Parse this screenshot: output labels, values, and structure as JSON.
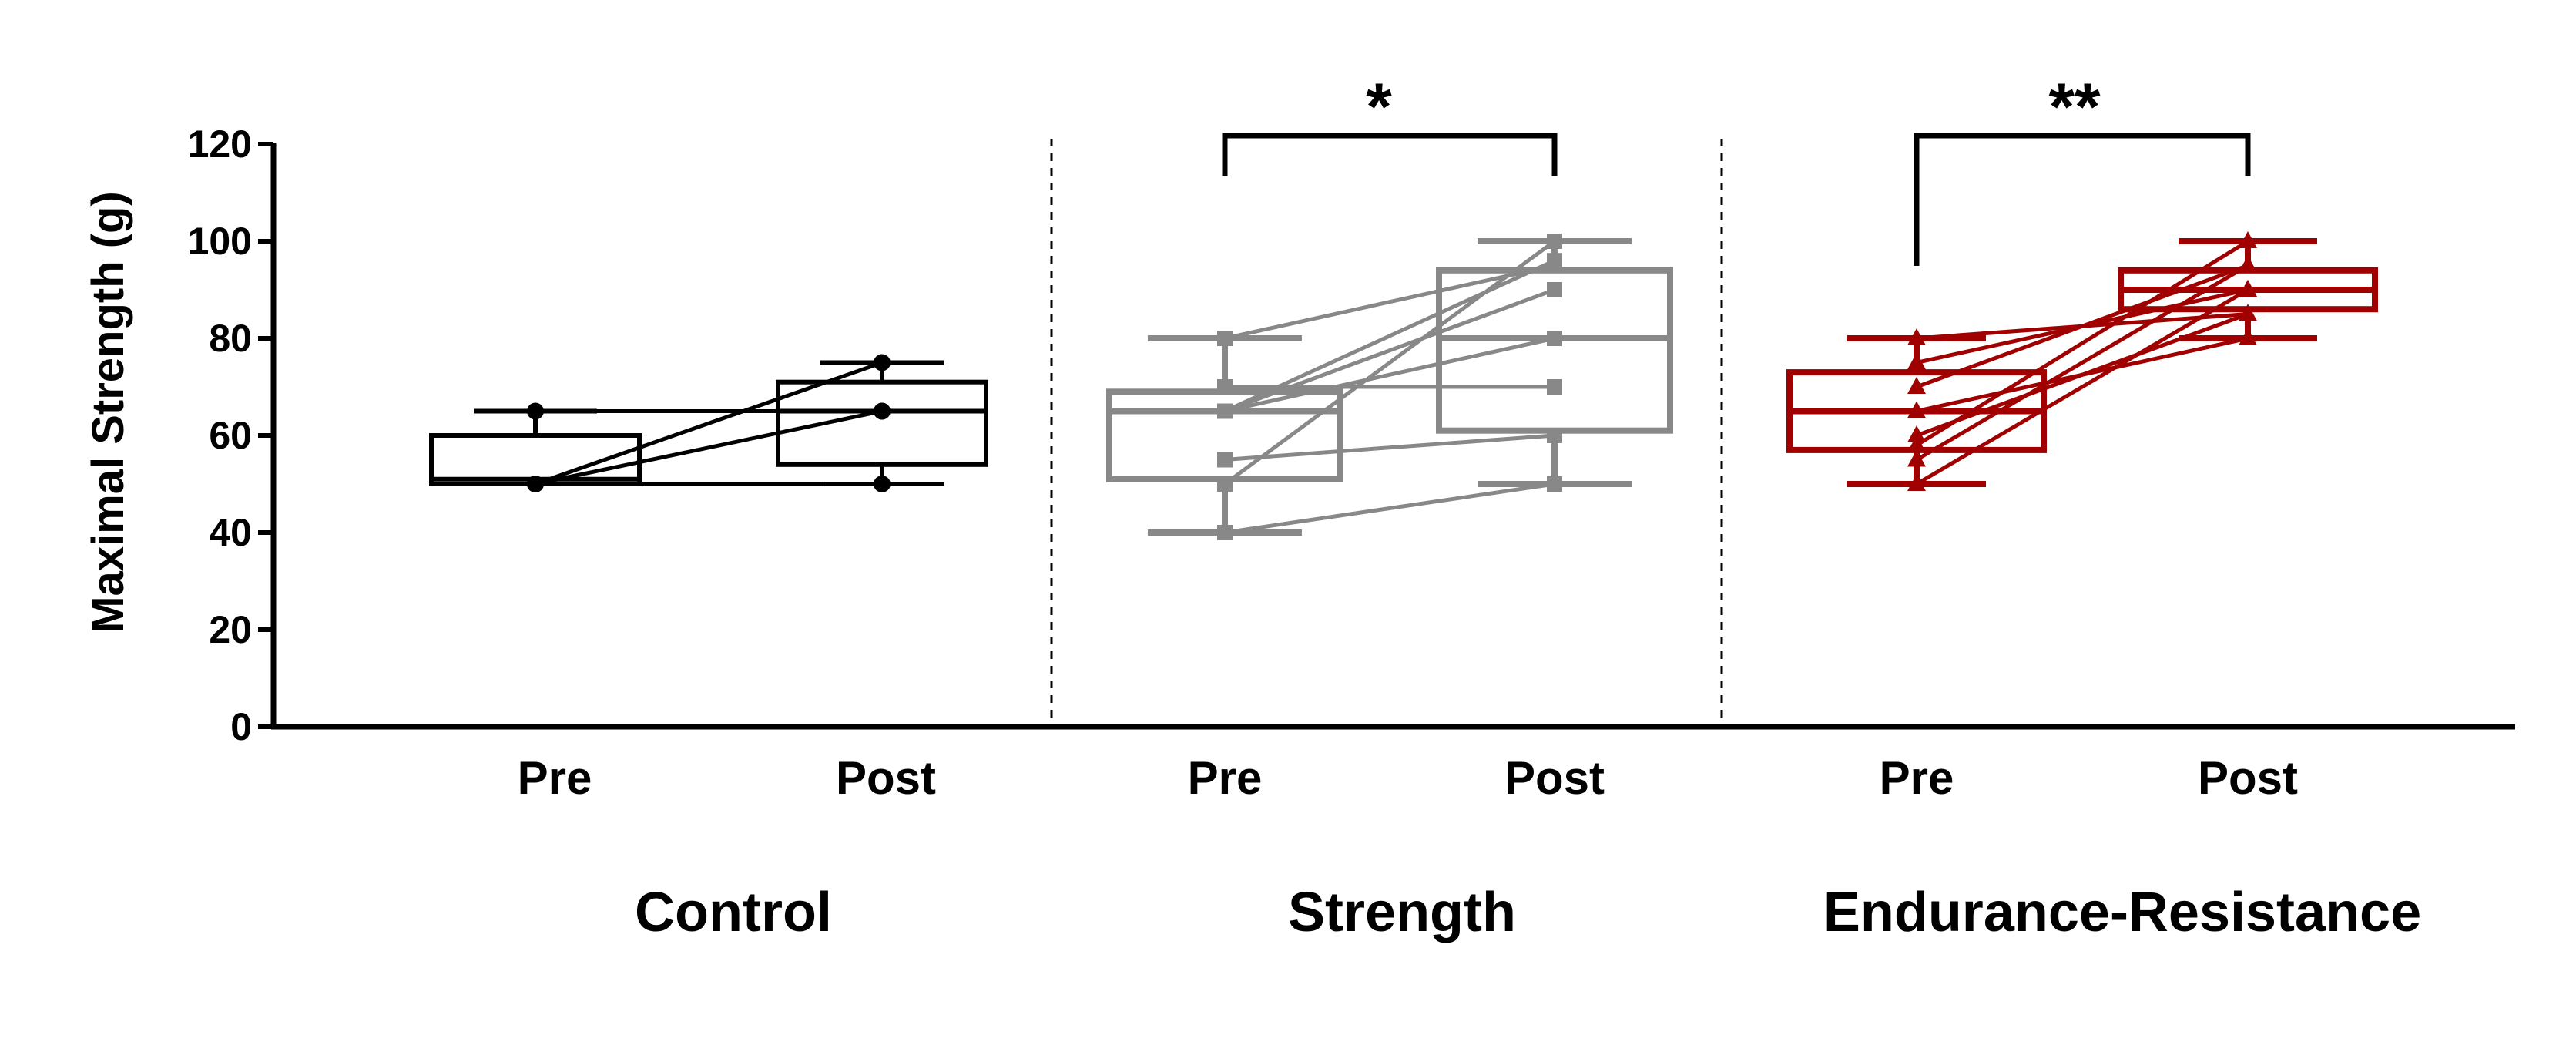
{
  "chart_data": {
    "type": "box",
    "ylabel": "Maximal Strength (g)",
    "xlabel": "",
    "ylim": [
      0,
      120
    ],
    "yticks": [
      0,
      20,
      40,
      60,
      80,
      100,
      120
    ],
    "groups": [
      {
        "name": "Control",
        "color": "#000000",
        "marker": "circle",
        "significance": "",
        "conditions": [
          {
            "label": "Pre",
            "box": {
              "min": 50,
              "q1": 50,
              "median": 51,
              "q3": 60,
              "max": 65
            }
          },
          {
            "label": "Post",
            "box": {
              "min": 50,
              "q1": 54,
              "median": 65,
              "q3": 71,
              "max": 75
            }
          }
        ],
        "subjects": [
          [
            50,
            75
          ],
          [
            50,
            65
          ],
          [
            65,
            65
          ],
          [
            50,
            50
          ]
        ]
      },
      {
        "name": "Strength",
        "color": "#888888",
        "marker": "square",
        "significance": "*",
        "conditions": [
          {
            "label": "Pre",
            "box": {
              "min": 40,
              "q1": 51,
              "median": 65,
              "q3": 69,
              "max": 80
            }
          },
          {
            "label": "Post",
            "box": {
              "min": 50,
              "q1": 61,
              "median": 80,
              "q3": 94,
              "max": 100
            }
          }
        ],
        "subjects": [
          [
            40,
            50
          ],
          [
            50,
            100
          ],
          [
            55,
            60
          ],
          [
            65,
            90
          ],
          [
            65,
            96
          ],
          [
            70,
            70
          ],
          [
            65,
            80
          ],
          [
            80,
            95
          ]
        ]
      },
      {
        "name": "Endurance-Resistance",
        "color": "#a00000",
        "marker": "triangle",
        "significance": "**",
        "conditions": [
          {
            "label": "Pre",
            "box": {
              "min": 50,
              "q1": 57,
              "median": 65,
              "q3": 73,
              "max": 80
            }
          },
          {
            "label": "Post",
            "box": {
              "min": 80,
              "q1": 86,
              "median": 90,
              "q3": 94,
              "max": 100
            }
          }
        ],
        "subjects": [
          [
            50,
            90
          ],
          [
            55,
            95
          ],
          [
            60,
            85
          ],
          [
            70,
            95
          ],
          [
            75,
            90
          ],
          [
            80,
            85
          ],
          [
            58,
            100
          ],
          [
            65,
            80
          ]
        ]
      }
    ]
  }
}
